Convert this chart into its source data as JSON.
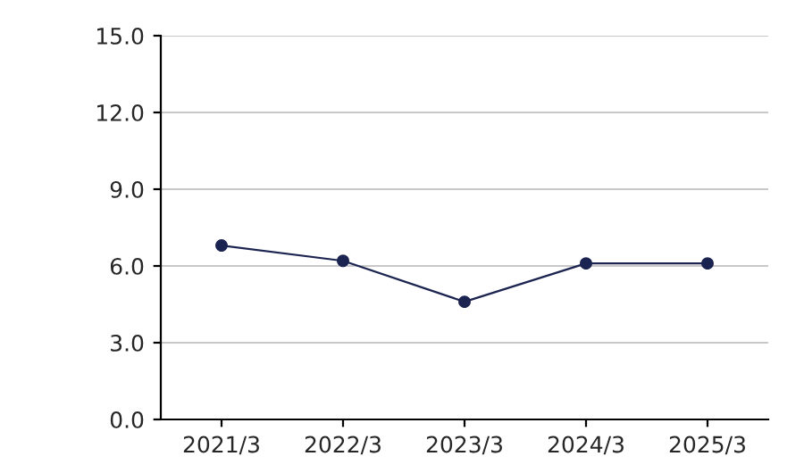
{
  "chart_data": {
    "type": "line",
    "categories": [
      "2021/3",
      "2022/3",
      "2023/3",
      "2024/3",
      "2025/3"
    ],
    "series": [
      {
        "color": "#1b2450",
        "values": [
          6.8,
          6.2,
          4.6,
          6.1,
          6.1
        ]
      }
    ],
    "ylim": [
      0,
      15
    ],
    "yticks": [
      {
        "value": 0,
        "label": "0.0"
      },
      {
        "value": 3,
        "label": "3.0"
      },
      {
        "value": 6,
        "label": "6.0"
      },
      {
        "value": 9,
        "label": "9.0"
      },
      {
        "value": 12,
        "label": "12.0"
      },
      {
        "value": 15,
        "label": "15.0"
      }
    ],
    "grid": "y",
    "marker": "circle",
    "line_style": "solid"
  }
}
